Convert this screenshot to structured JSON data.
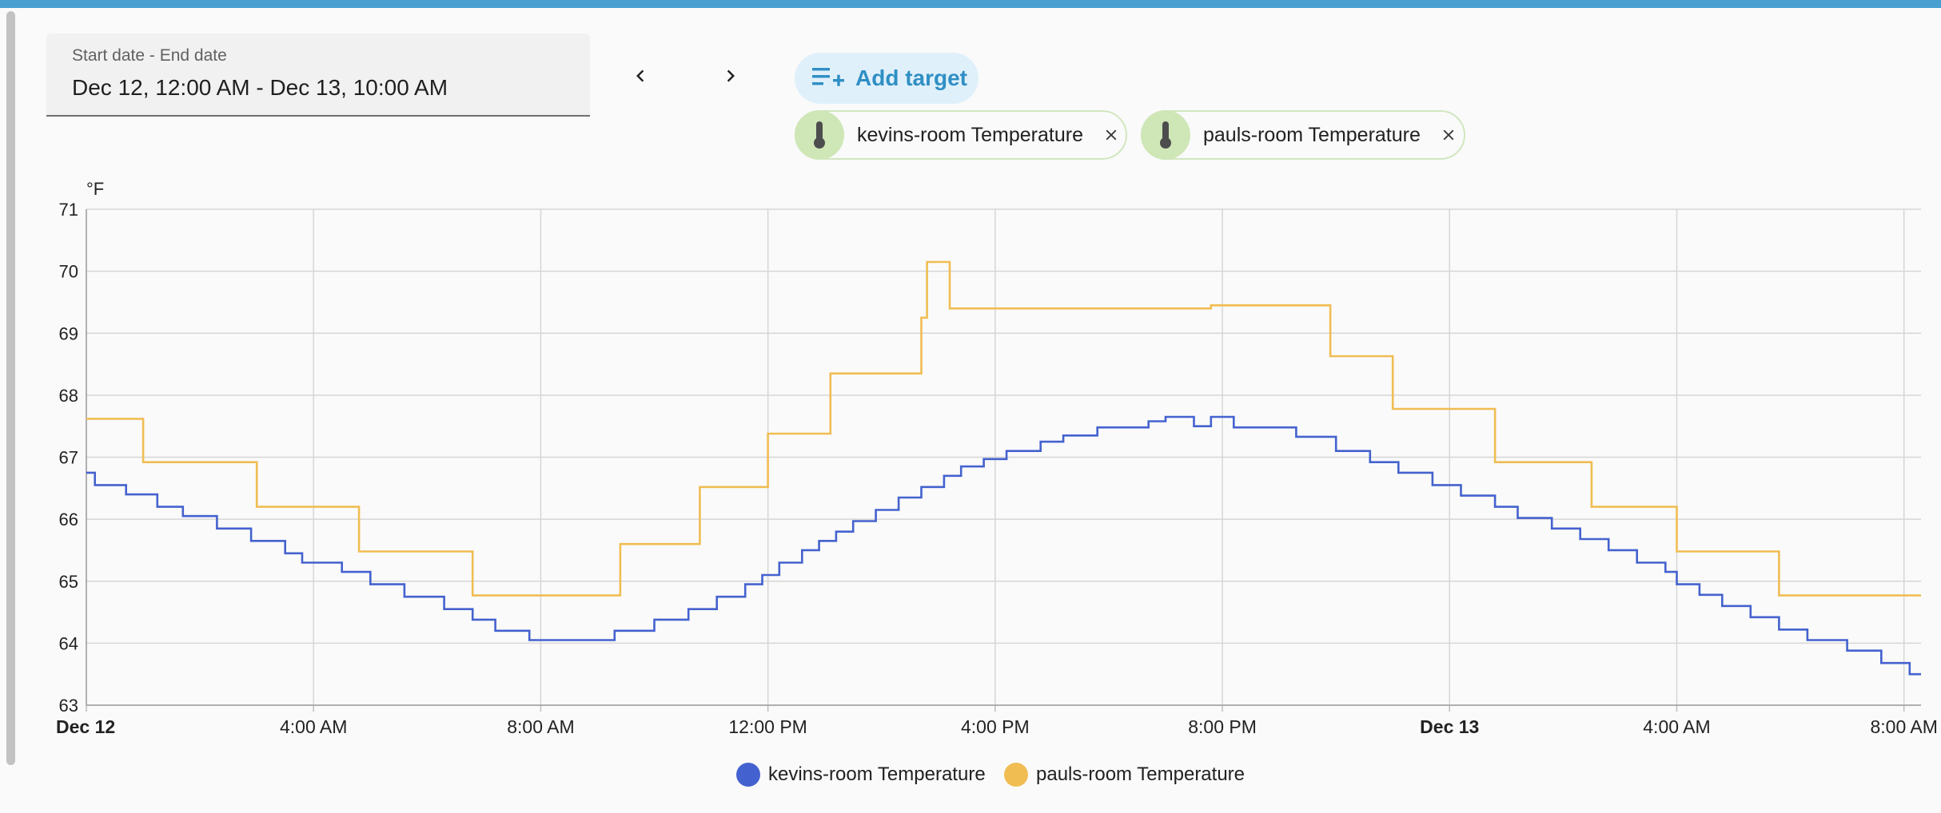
{
  "date_picker": {
    "label": "Start date - End date",
    "value": "Dec 12, 12:00 AM - Dec 13, 10:00 AM"
  },
  "nav": {
    "prev_icon": "chevron-left-icon",
    "next_icon": "chevron-right-icon"
  },
  "add_target": {
    "label": "Add target",
    "icon": "playlist-add-icon"
  },
  "targets": [
    {
      "label": "kevins-room Temperature",
      "icon": "thermometer-icon"
    },
    {
      "label": "pauls-room Temperature",
      "icon": "thermometer-icon"
    }
  ],
  "colors": {
    "kevins": "#4462cf",
    "pauls": "#f0bd53",
    "accent": "#2f8fc4",
    "topbar": "#4a9fd1"
  },
  "chart_data": {
    "type": "line",
    "step": true,
    "ylabel": "°F",
    "ylim": [
      63,
      71
    ],
    "yticks": [
      63,
      64,
      65,
      66,
      67,
      68,
      69,
      70,
      71
    ],
    "xlim": [
      0,
      32.3
    ],
    "xticks": [
      {
        "at": 0,
        "label": "Dec 12",
        "bold": true
      },
      {
        "at": 4,
        "label": "4:00 AM",
        "bold": false
      },
      {
        "at": 8,
        "label": "8:00 AM",
        "bold": false
      },
      {
        "at": 12,
        "label": "12:00 PM",
        "bold": false
      },
      {
        "at": 16,
        "label": "4:00 PM",
        "bold": false
      },
      {
        "at": 20,
        "label": "8:00 PM",
        "bold": false
      },
      {
        "at": 24,
        "label": "Dec 13",
        "bold": true
      },
      {
        "at": 28,
        "label": "4:00 AM",
        "bold": false
      },
      {
        "at": 32,
        "label": "8:00 AM",
        "bold": false
      }
    ],
    "grid": true,
    "legend_position": "bottom",
    "series": [
      {
        "name": "kevins-room Temperature",
        "color": "#4462cf",
        "points": [
          [
            0,
            66.75
          ],
          [
            0.15,
            66.55
          ],
          [
            0.7,
            66.4
          ],
          [
            1.25,
            66.2
          ],
          [
            1.7,
            66.05
          ],
          [
            2.3,
            65.85
          ],
          [
            2.9,
            65.65
          ],
          [
            3.5,
            65.45
          ],
          [
            3.8,
            65.3
          ],
          [
            4.5,
            65.15
          ],
          [
            5.0,
            64.95
          ],
          [
            5.6,
            64.75
          ],
          [
            6.3,
            64.55
          ],
          [
            6.8,
            64.38
          ],
          [
            7.2,
            64.2
          ],
          [
            7.8,
            64.05
          ],
          [
            9.3,
            64.2
          ],
          [
            10.0,
            64.38
          ],
          [
            10.6,
            64.55
          ],
          [
            11.1,
            64.75
          ],
          [
            11.6,
            64.95
          ],
          [
            11.9,
            65.1
          ],
          [
            12.2,
            65.3
          ],
          [
            12.6,
            65.5
          ],
          [
            12.9,
            65.65
          ],
          [
            13.2,
            65.8
          ],
          [
            13.5,
            65.97
          ],
          [
            13.9,
            66.15
          ],
          [
            14.3,
            66.35
          ],
          [
            14.7,
            66.52
          ],
          [
            15.1,
            66.7
          ],
          [
            15.4,
            66.85
          ],
          [
            15.8,
            66.97
          ],
          [
            16.2,
            67.1
          ],
          [
            16.8,
            67.25
          ],
          [
            17.2,
            67.35
          ],
          [
            17.8,
            67.48
          ],
          [
            18.7,
            67.58
          ],
          [
            19.0,
            67.65
          ],
          [
            19.5,
            67.5
          ],
          [
            19.8,
            67.65
          ],
          [
            20.2,
            67.48
          ],
          [
            21.3,
            67.33
          ],
          [
            22.0,
            67.1
          ],
          [
            22.6,
            66.92
          ],
          [
            23.1,
            66.75
          ],
          [
            23.7,
            66.55
          ],
          [
            24.2,
            66.38
          ],
          [
            24.8,
            66.2
          ],
          [
            25.2,
            66.02
          ],
          [
            25.8,
            65.85
          ],
          [
            26.3,
            65.68
          ],
          [
            26.8,
            65.5
          ],
          [
            27.3,
            65.3
          ],
          [
            27.8,
            65.15
          ],
          [
            28.0,
            64.95
          ],
          [
            28.4,
            64.78
          ],
          [
            28.8,
            64.6
          ],
          [
            29.3,
            64.42
          ],
          [
            29.8,
            64.22
          ],
          [
            30.3,
            64.05
          ],
          [
            31.0,
            63.88
          ],
          [
            31.6,
            63.68
          ],
          [
            32.1,
            63.5
          ],
          [
            32.3,
            63.5
          ]
        ]
      },
      {
        "name": "pauls-room Temperature",
        "color": "#f0bd53",
        "points": [
          [
            0,
            67.62
          ],
          [
            1.0,
            66.92
          ],
          [
            3.0,
            66.2
          ],
          [
            4.8,
            65.48
          ],
          [
            6.8,
            64.77
          ],
          [
            9.4,
            65.6
          ],
          [
            10.8,
            66.52
          ],
          [
            12.0,
            67.38
          ],
          [
            13.1,
            68.35
          ],
          [
            14.7,
            69.25
          ],
          [
            14.8,
            70.15
          ],
          [
            15.2,
            69.4
          ],
          [
            19.8,
            69.45
          ],
          [
            21.9,
            68.63
          ],
          [
            23.0,
            67.78
          ],
          [
            24.8,
            66.92
          ],
          [
            26.5,
            66.2
          ],
          [
            28.0,
            65.48
          ],
          [
            29.8,
            64.77
          ],
          [
            32.3,
            64.77
          ]
        ]
      }
    ]
  }
}
